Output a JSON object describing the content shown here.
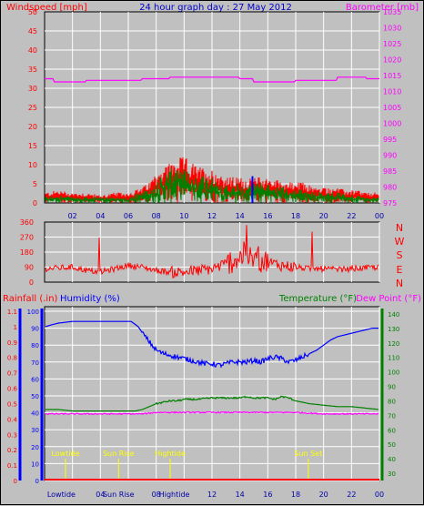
{
  "header": {
    "left_label": "Windspeed [mph]",
    "center_label": "24 hour graph day : 27 May 2012",
    "right_label": "Barometer [mb]"
  },
  "colors": {
    "background": "#c0c0c0",
    "panel": "#c0c0c0",
    "grid": "#ffffff",
    "wind_gust": "#ff0000",
    "wind_avg": "#008000",
    "wind_point": "#0000ff",
    "barometer": "#ff00ff",
    "direction": "#ff0000",
    "humidity": "#0000ff",
    "temperature": "#008000",
    "dewpoint": "#ff00ff",
    "rainfall": "#ff0000",
    "events": "#ffff00",
    "axis_left_top": "#ff0000",
    "axis_right_top": "#ff00ff",
    "axis_bottom_left": "#ff0000",
    "axis_bottom_inner": "#0000ff",
    "axis_bottom_right": "#008000"
  },
  "chart_data": [
    {
      "type": "line",
      "title": "24 hour graph day : 27 May 2012",
      "ylabel": "Windspeed [mph]",
      "y2label": "Barometer [mb]",
      "x_ticks": [
        "02",
        "04",
        "06",
        "08",
        "10",
        "12",
        "14",
        "16",
        "18",
        "20",
        "22",
        "00"
      ],
      "ylim": [
        0,
        50
      ],
      "yticks": [
        0,
        5,
        10,
        15,
        20,
        25,
        30,
        35,
        40,
        45,
        50
      ],
      "y2lim": [
        975,
        1035
      ],
      "y2ticks": [
        975,
        980,
        985,
        990,
        995,
        1000,
        1005,
        1010,
        1015,
        1020,
        1025,
        1030,
        1035
      ],
      "grid": true,
      "series": [
        {
          "name": "Windspeed [mph]",
          "style": "gust",
          "x": [
            0,
            1,
            2,
            3,
            4,
            5,
            6,
            7,
            7.5,
            8,
            8.5,
            9,
            9.5,
            10,
            10.5,
            11,
            11.5,
            12,
            12.5,
            13,
            13.5,
            14,
            14.5,
            15,
            15.5,
            16,
            16.5,
            17,
            17.5,
            18,
            18.5,
            19,
            19.5,
            20,
            20.5,
            21,
            21.5,
            22,
            22.5,
            23,
            23.5,
            24
          ],
          "values": [
            2,
            2.5,
            2,
            2,
            1.5,
            2,
            2,
            3,
            4,
            6,
            7,
            8,
            8.5,
            9,
            8,
            7,
            7,
            6.5,
            6,
            5,
            5,
            5,
            4.5,
            5,
            5,
            5,
            4.5,
            4.5,
            4,
            4,
            4,
            3.5,
            3,
            3,
            3,
            3,
            2.5,
            2.5,
            2.5,
            2,
            2,
            2
          ]
        },
        {
          "name": "Windspeed [mph]",
          "style": "average",
          "x": [
            0,
            1,
            2,
            3,
            4,
            5,
            6,
            7,
            7.5,
            8,
            8.5,
            9,
            9.5,
            10,
            10.5,
            11,
            11.5,
            12,
            12.5,
            13,
            13.5,
            14,
            14.5,
            15,
            15.5,
            16,
            16.5,
            17,
            17.5,
            18,
            18.5,
            19,
            19.5,
            20,
            20.5,
            21,
            21.5,
            22,
            22.5,
            23,
            23.5,
            24
          ],
          "values": [
            1,
            1.5,
            1,
            1,
            1,
            1,
            1,
            2,
            2.5,
            4,
            5,
            6,
            6.5,
            6,
            5.5,
            5,
            5,
            4.5,
            4,
            3.5,
            3.5,
            3.5,
            3,
            3.5,
            3.5,
            3.5,
            3,
            3,
            2.5,
            2.5,
            2.5,
            2,
            2,
            2,
            2,
            2,
            1.5,
            1.5,
            1.5,
            1,
            1,
            1
          ]
        },
        {
          "name": "Barometer [mb]",
          "axis": "right",
          "x": [
            0,
            0.6,
            0.7,
            2.9,
            3.0,
            6.9,
            7.0,
            8.9,
            9.0,
            11.9,
            12.0,
            13.9,
            14.0,
            14.9,
            15.0,
            17.9,
            18.0,
            20.9,
            21.0,
            23.0,
            23.1,
            24
          ],
          "values": [
            1014,
            1014,
            1013,
            1013,
            1013.5,
            1013.5,
            1014,
            1014,
            1014.5,
            1014.5,
            1014.5,
            1014.5,
            1014,
            1014,
            1013,
            1013,
            1013.5,
            1013.5,
            1014.5,
            1014.5,
            1014,
            1014
          ]
        }
      ]
    },
    {
      "type": "scatter",
      "ylabel": "Direction",
      "ylim": [
        0,
        360
      ],
      "yticks": [
        0,
        90,
        180,
        270,
        360
      ],
      "compass_labels": [
        "N",
        "W",
        "S",
        "E",
        "N"
      ],
      "series": [
        {
          "name": "Direction",
          "x": [
            0,
            1,
            2,
            3,
            4,
            5,
            6,
            7,
            8,
            9,
            10,
            11,
            12,
            13,
            14,
            15,
            16,
            17,
            18,
            19,
            20,
            21,
            22,
            23,
            24
          ],
          "values": [
            80,
            85,
            90,
            70,
            60,
            80,
            100,
            90,
            70,
            60,
            60,
            70,
            80,
            110,
            150,
            140,
            120,
            100,
            90,
            80,
            80,
            75,
            80,
            85,
            90
          ]
        }
      ]
    },
    {
      "type": "line",
      "labels": {
        "rainfall": "Rainfall (.in)",
        "humidity": "Humidity (%)",
        "temperature": "Temperature (°F)",
        "dewpoint": "Dew Point (°F)"
      },
      "x_ticks": [
        "02",
        "04",
        "06",
        "08",
        "10",
        "12",
        "14",
        "16",
        "18",
        "20",
        "22",
        "00"
      ],
      "x_special_labels": [
        "Lowtide",
        "Sun Rise",
        "Hightide"
      ],
      "rain_ylim": [
        0,
        1.2
      ],
      "rain_yticks": [
        "0",
        "0.1",
        "0.2",
        "0.3",
        "0.4",
        "0.5",
        "0.6",
        "0.7",
        "0.8",
        "0.9",
        "1",
        "1.1"
      ],
      "humidity_ylim": [
        0,
        100
      ],
      "humidity_yticks": [
        0,
        10,
        20,
        30,
        40,
        50,
        60,
        70,
        80,
        90,
        100
      ],
      "temp_ylim": [
        25,
        145
      ],
      "temp_yticks": [
        30,
        40,
        50,
        60,
        70,
        80,
        90,
        100,
        110,
        120,
        130,
        140
      ],
      "series": [
        {
          "name": "Humidity (%)",
          "x": [
            0,
            0.1,
            0.5,
            1,
            2,
            3,
            4,
            5,
            6,
            6.2,
            6.7,
            7.2,
            7.7,
            8,
            8.5,
            9,
            9.5,
            10,
            10.5,
            11,
            11.5,
            12,
            12.5,
            13,
            13.5,
            14,
            14.5,
            15,
            15.5,
            16,
            16.5,
            17,
            17.5,
            18,
            18.5,
            19,
            19.5,
            20,
            20.5,
            21,
            21.5,
            22,
            22.5,
            23,
            23.5,
            24
          ],
          "values": [
            91,
            91,
            92,
            93,
            94,
            94,
            94,
            94,
            94,
            94,
            91,
            85,
            80,
            77,
            75,
            74,
            73,
            72,
            71,
            70,
            69,
            69,
            68,
            69,
            70,
            70,
            70,
            71,
            70,
            72,
            73,
            72,
            70,
            71,
            73,
            75,
            77,
            80,
            83,
            85,
            86,
            87,
            88,
            89,
            90,
            90
          ]
        },
        {
          "name": "Temperature (°F)",
          "x": [
            0,
            1,
            2,
            3,
            4,
            5,
            6,
            6.5,
            7,
            7.5,
            8,
            8.5,
            9,
            9.5,
            10,
            11,
            12,
            13,
            14,
            14.5,
            15,
            16,
            16.5,
            17,
            17.5,
            18,
            18.5,
            19,
            20,
            21,
            22,
            23,
            24
          ],
          "values": [
            74,
            74,
            73,
            73,
            73,
            73,
            73,
            73,
            74,
            76,
            78,
            79,
            80,
            80,
            81,
            81,
            82,
            82,
            82,
            83,
            82,
            82,
            81,
            83,
            82,
            80,
            79,
            78,
            77,
            76,
            76,
            75,
            74
          ]
        },
        {
          "name": "Dew Point (°F)",
          "x": [
            0,
            2,
            4,
            6,
            7,
            8,
            10,
            12,
            14,
            16,
            18,
            20,
            22,
            24
          ],
          "values": [
            71,
            71,
            71,
            71,
            71,
            72,
            72,
            72,
            72,
            72,
            72,
            71,
            71,
            71
          ]
        },
        {
          "name": "Rainfall (.in)",
          "x": [
            0,
            24
          ],
          "values": [
            0,
            0
          ]
        }
      ],
      "events": [
        {
          "label": "Lowtide",
          "hour": 1.5
        },
        {
          "label": "Sun Rise",
          "hour": 5.3
        },
        {
          "label": "Hightide",
          "hour": 9.0
        },
        {
          "label": "Sun Set",
          "hour": 18.9
        }
      ]
    }
  ]
}
